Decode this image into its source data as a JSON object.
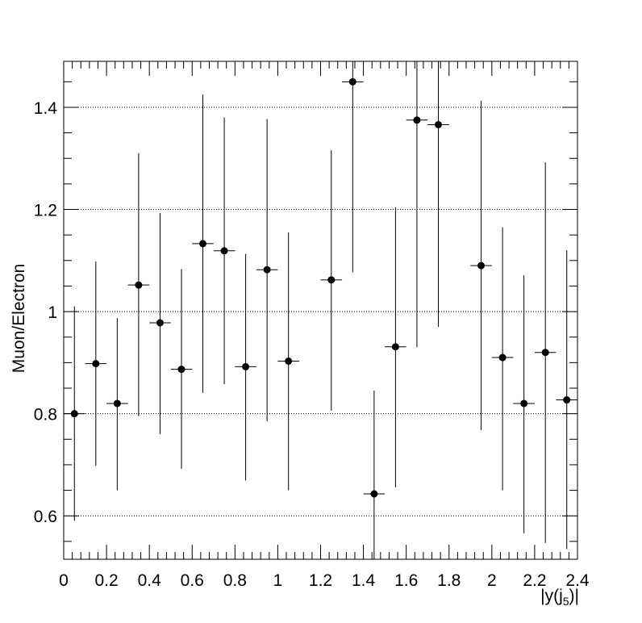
{
  "chart_data": {
    "type": "scatter",
    "title": "",
    "xlabel": "|y(j",
    "xlabel_sub": "5",
    "xlabel_suffix": ")|",
    "ylabel": "Muon/Electron",
    "xlim": [
      0,
      2.4
    ],
    "ylim": [
      0.515,
      1.49
    ],
    "grid": "horizontal-dotted-at-major-y-ticks",
    "x_ticks": [
      0,
      0.2,
      0.4,
      0.6,
      0.8,
      1,
      1.2,
      1.4,
      1.6,
      1.8,
      2,
      2.2,
      2.4
    ],
    "x_tick_labels": [
      "0",
      "0.2",
      "0.4",
      "0.6",
      "0.8",
      "1",
      "1.2",
      "1.4",
      "1.6",
      "1.8",
      "2",
      "2.2",
      "2.4"
    ],
    "y_ticks": [
      0.6,
      0.8,
      1.0,
      1.2,
      1.4
    ],
    "y_tick_labels": [
      "0.6",
      "0.8",
      "1",
      "1.2",
      "1.4"
    ],
    "x_bin_half_width": 0.05,
    "series": [
      {
        "marker_color": "#000000",
        "points": [
          {
            "x": 0.05,
            "y": 0.8,
            "err_low": 0.59,
            "err_high": 1.01
          },
          {
            "x": 0.15,
            "y": 0.898,
            "err_low": 0.698,
            "err_high": 1.098
          },
          {
            "x": 0.25,
            "y": 0.82,
            "err_low": 0.65,
            "err_high": 0.987
          },
          {
            "x": 0.35,
            "y": 1.052,
            "err_low": 0.795,
            "err_high": 1.31
          },
          {
            "x": 0.45,
            "y": 0.978,
            "err_low": 0.76,
            "err_high": 1.193
          },
          {
            "x": 0.55,
            "y": 0.887,
            "err_low": 0.692,
            "err_high": 1.083
          },
          {
            "x": 0.65,
            "y": 1.133,
            "err_low": 0.841,
            "err_high": 1.425
          },
          {
            "x": 0.75,
            "y": 1.119,
            "err_low": 0.858,
            "err_high": 1.38
          },
          {
            "x": 0.85,
            "y": 0.892,
            "err_low": 0.669,
            "err_high": 1.113
          },
          {
            "x": 0.95,
            "y": 1.082,
            "err_low": 0.785,
            "err_high": 1.377
          },
          {
            "x": 1.05,
            "y": 0.903,
            "err_low": 0.65,
            "err_high": 1.155
          },
          {
            "x": 1.25,
            "y": 1.062,
            "err_low": 0.806,
            "err_high": 1.316
          },
          {
            "x": 1.35,
            "y": 1.45,
            "err_low": 1.077,
            "err_high": 1.49
          },
          {
            "x": 1.45,
            "y": 0.643,
            "err_low": 0.515,
            "err_high": 0.845
          },
          {
            "x": 1.55,
            "y": 0.931,
            "err_low": 0.656,
            "err_high": 1.204
          },
          {
            "x": 1.65,
            "y": 1.375,
            "err_low": 0.93,
            "err_high": 1.49
          },
          {
            "x": 1.75,
            "y": 1.366,
            "err_low": 0.97,
            "err_high": 1.49
          },
          {
            "x": 1.95,
            "y": 1.09,
            "err_low": 0.768,
            "err_high": 1.413
          },
          {
            "x": 2.05,
            "y": 0.91,
            "err_low": 0.65,
            "err_high": 1.165
          },
          {
            "x": 2.15,
            "y": 0.82,
            "err_low": 0.566,
            "err_high": 1.071
          },
          {
            "x": 2.25,
            "y": 0.92,
            "err_low": 0.547,
            "err_high": 1.292
          },
          {
            "x": 2.35,
            "y": 0.827,
            "err_low": 0.535,
            "err_high": 1.12
          }
        ]
      }
    ]
  }
}
